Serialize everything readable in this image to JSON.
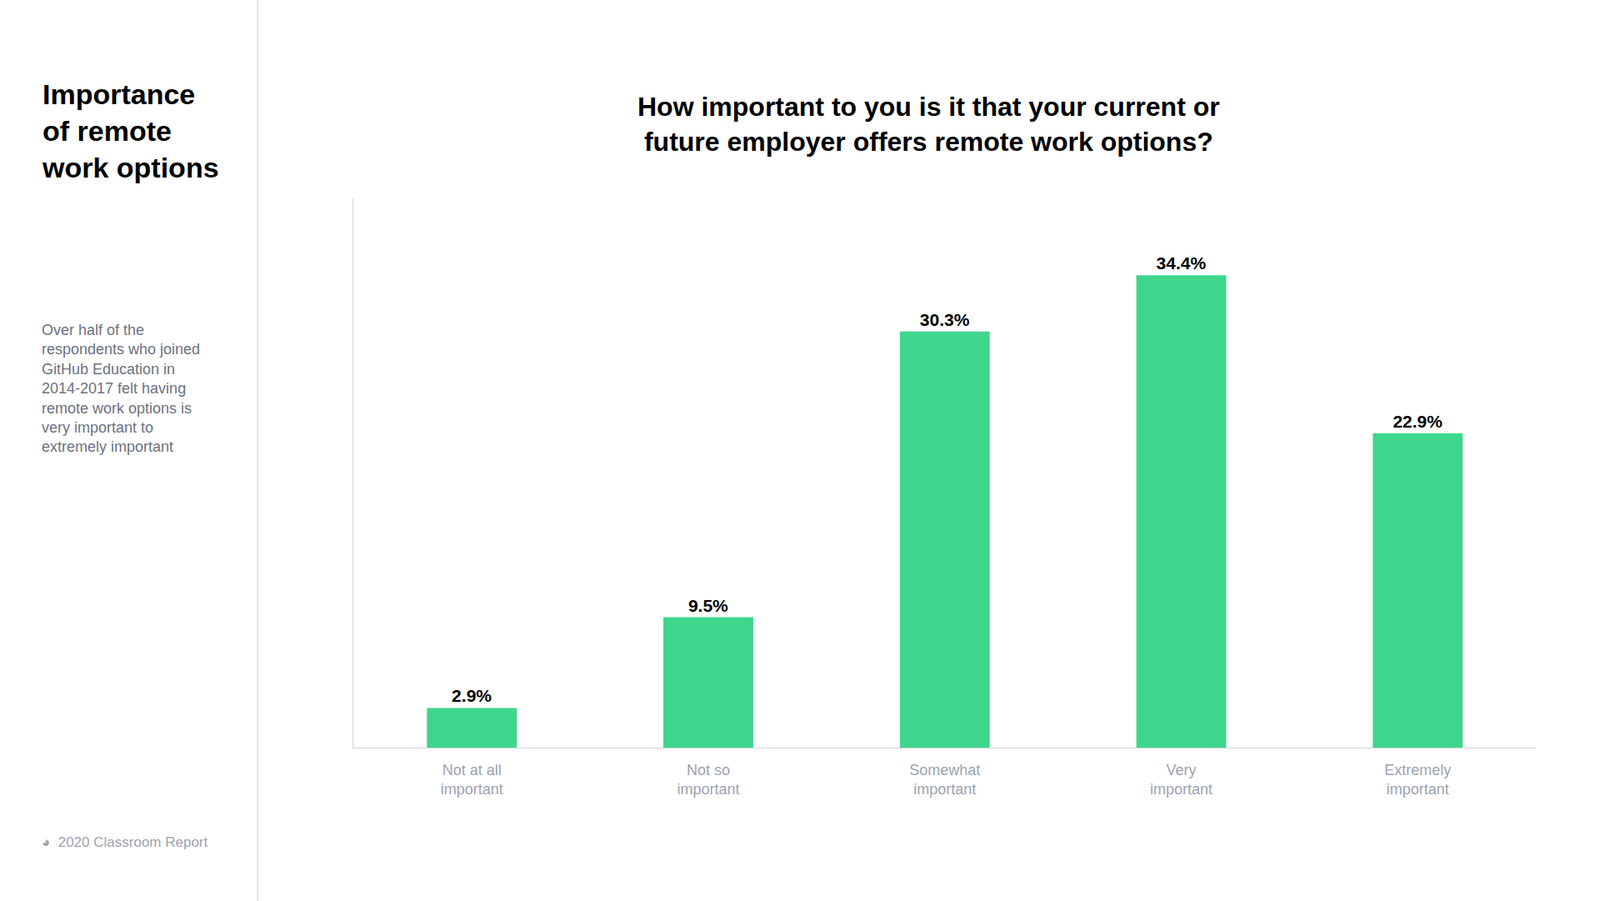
{
  "chart_data": {
    "type": "bar",
    "title": "How important to you is it that your current or\nfuture employer offers remote work options?",
    "annotations": [
      "Importance\nof remote\nwork options",
      "Over half of the\nrespondents who joined\nGitHub Education in\n2014-2017 felt having\nremote work options is\nvery important to\nextremely important",
      "◕  2020 Classroom Report"
    ],
    "categories": [
      "Not at all\nimportant",
      "Not so\nimportant",
      "Somewhat\nimportant",
      "Very\nimportant",
      "Extremely\nimportant"
    ],
    "values": [
      2.9,
      9.5,
      30.3,
      34.4,
      22.9
    ],
    "value_labels": [
      "2.9%",
      "9.5%",
      "30.3%",
      "34.4%",
      "22.9%"
    ],
    "data_labels": true,
    "color": "#3DD68C",
    "ylim": [
      0,
      40
    ],
    "tick_labels": "x",
    "grid": false
  }
}
